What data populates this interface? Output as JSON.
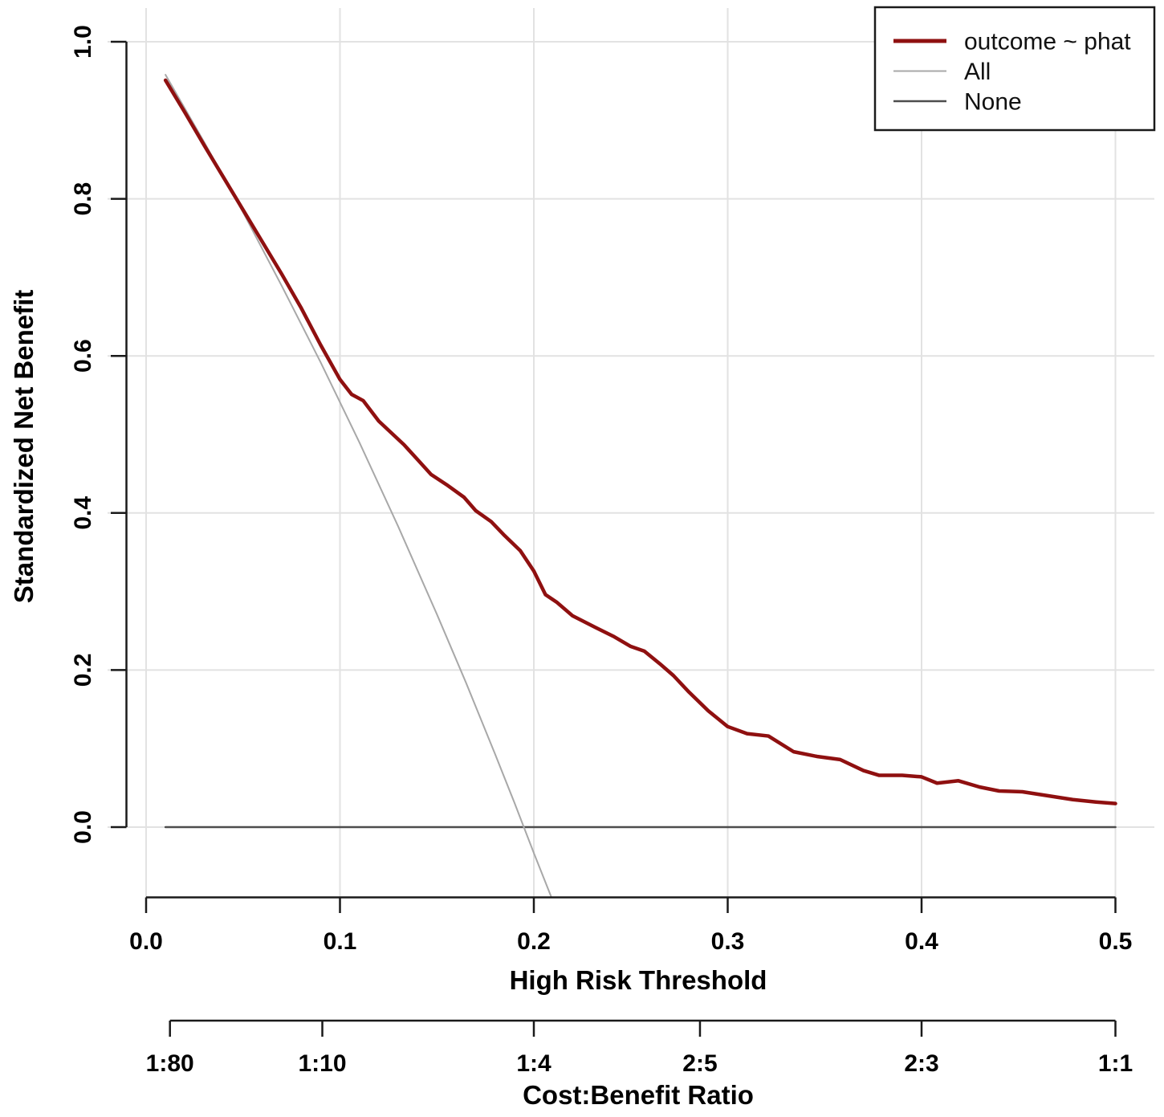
{
  "figure": {
    "x_axis_title": "High Risk Threshold",
    "y_axis_title": "Standardized Net Benefit",
    "secondary_x_axis_title": "Cost:Benefit Ratio"
  },
  "legend": {
    "position": "topright",
    "entries": [
      {
        "label": "outcome ~ phat",
        "color": "#8f1010",
        "sample_width": 5
      },
      {
        "label": "All",
        "color": "#a8a8a8",
        "sample_width": 2
      },
      {
        "label": "None",
        "color": "#4d4d4d",
        "sample_width": 2.5
      }
    ]
  },
  "chart_data": {
    "type": "line",
    "title": "",
    "xlabel": "High Risk Threshold",
    "ylabel": "Standardized Net Benefit",
    "x2label": "Cost:Benefit Ratio",
    "xlim": [
      0.0,
      0.5
    ],
    "ylim": [
      -0.09,
      1.04
    ],
    "grid": true,
    "grid_color": "#e2e2e2",
    "axis_color": "#1a1a1a",
    "x_ticks": [
      0.0,
      0.1,
      0.2,
      0.3,
      0.4,
      0.5
    ],
    "x_tick_labels": [
      "0.0",
      "0.1",
      "0.2",
      "0.3",
      "0.4",
      "0.5"
    ],
    "y_ticks": [
      0.0,
      0.2,
      0.4,
      0.6,
      0.8,
      1.0
    ],
    "y_tick_labels": [
      "0.0",
      "0.2",
      "0.4",
      "0.6",
      "0.8",
      "1.0"
    ],
    "cost_benefit_ticks": [
      {
        "label": "1:80",
        "threshold": 0.0123
      },
      {
        "label": "1:10",
        "threshold": 0.0909
      },
      {
        "label": "1:4",
        "threshold": 0.2
      },
      {
        "label": "2:5",
        "threshold": 0.2857
      },
      {
        "label": "2:3",
        "threshold": 0.4
      },
      {
        "label": "1:1",
        "threshold": 0.5
      }
    ],
    "series": [
      {
        "name": "outcome ~ phat",
        "color": "#8f1010",
        "width": 4.5,
        "points": [
          [
            0.01,
            0.951
          ],
          [
            0.02,
            0.91
          ],
          [
            0.03,
            0.868
          ],
          [
            0.04,
            0.827
          ],
          [
            0.05,
            0.786
          ],
          [
            0.06,
            0.745
          ],
          [
            0.07,
            0.704
          ],
          [
            0.08,
            0.661
          ],
          [
            0.09,
            0.614
          ],
          [
            0.1,
            0.57
          ],
          [
            0.106,
            0.551
          ],
          [
            0.112,
            0.543
          ],
          [
            0.12,
            0.517
          ],
          [
            0.133,
            0.487
          ],
          [
            0.14,
            0.468
          ],
          [
            0.147,
            0.449
          ],
          [
            0.155,
            0.436
          ],
          [
            0.164,
            0.42
          ],
          [
            0.17,
            0.403
          ],
          [
            0.178,
            0.389
          ],
          [
            0.185,
            0.371
          ],
          [
            0.193,
            0.352
          ],
          [
            0.2,
            0.326
          ],
          [
            0.206,
            0.296
          ],
          [
            0.212,
            0.286
          ],
          [
            0.22,
            0.269
          ],
          [
            0.232,
            0.254
          ],
          [
            0.241,
            0.243
          ],
          [
            0.25,
            0.23
          ],
          [
            0.257,
            0.224
          ],
          [
            0.265,
            0.208
          ],
          [
            0.272,
            0.193
          ],
          [
            0.28,
            0.172
          ],
          [
            0.29,
            0.148
          ],
          [
            0.3,
            0.128
          ],
          [
            0.31,
            0.119
          ],
          [
            0.321,
            0.116
          ],
          [
            0.334,
            0.096
          ],
          [
            0.346,
            0.09
          ],
          [
            0.358,
            0.086
          ],
          [
            0.37,
            0.072
          ],
          [
            0.378,
            0.066
          ],
          [
            0.39,
            0.066
          ],
          [
            0.4,
            0.064
          ],
          [
            0.408,
            0.056
          ],
          [
            0.419,
            0.059
          ],
          [
            0.43,
            0.051
          ],
          [
            0.44,
            0.046
          ],
          [
            0.452,
            0.045
          ],
          [
            0.465,
            0.04
          ],
          [
            0.478,
            0.035
          ],
          [
            0.49,
            0.032
          ],
          [
            0.5,
            0.03
          ]
        ]
      },
      {
        "name": "All",
        "color": "#a8a8a8",
        "width": 2,
        "points": [
          [
            0.01,
            0.958
          ],
          [
            0.03,
            0.872
          ],
          [
            0.05,
            0.783
          ],
          [
            0.07,
            0.689
          ],
          [
            0.09,
            0.592
          ],
          [
            0.11,
            0.49
          ],
          [
            0.13,
            0.383
          ],
          [
            0.15,
            0.271
          ],
          [
            0.165,
            0.184
          ],
          [
            0.18,
            0.093
          ],
          [
            0.19,
            0.031
          ],
          [
            0.2,
            -0.033
          ],
          [
            0.209,
            -0.089
          ]
        ]
      },
      {
        "name": "None",
        "color": "#4d4d4d",
        "width": 2.5,
        "points": [
          [
            0.01,
            0.0
          ],
          [
            0.5,
            0.0
          ]
        ]
      }
    ]
  }
}
